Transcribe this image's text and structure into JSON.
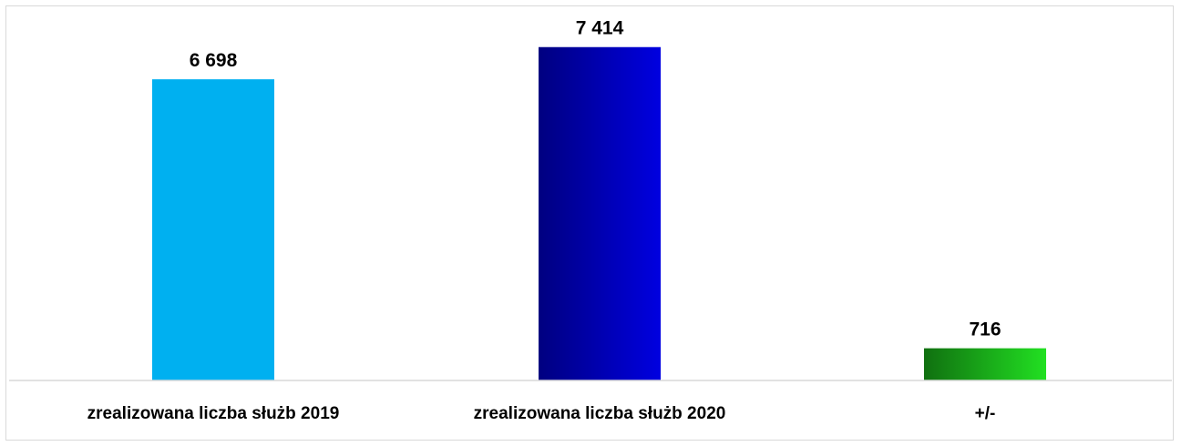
{
  "chart_data": {
    "type": "bar",
    "categories": [
      "zrealizowana liczba służb 2019",
      "zrealizowana liczba służb 2020",
      "+/-"
    ],
    "values": [
      6698,
      7414,
      716
    ],
    "value_labels": [
      "6 698",
      "7 414",
      "716"
    ],
    "title": "",
    "xlabel": "",
    "ylabel": "",
    "ylim": [
      0,
      8000
    ],
    "grid": false,
    "legend": "none",
    "bar_colors": [
      {
        "from": "#00b0f0",
        "to": "#00b0f0"
      },
      {
        "from": "#000080",
        "to": "#0000e0"
      },
      {
        "from": "#107010",
        "to": "#22e022"
      }
    ],
    "axis_color": "#d9d9d9"
  }
}
